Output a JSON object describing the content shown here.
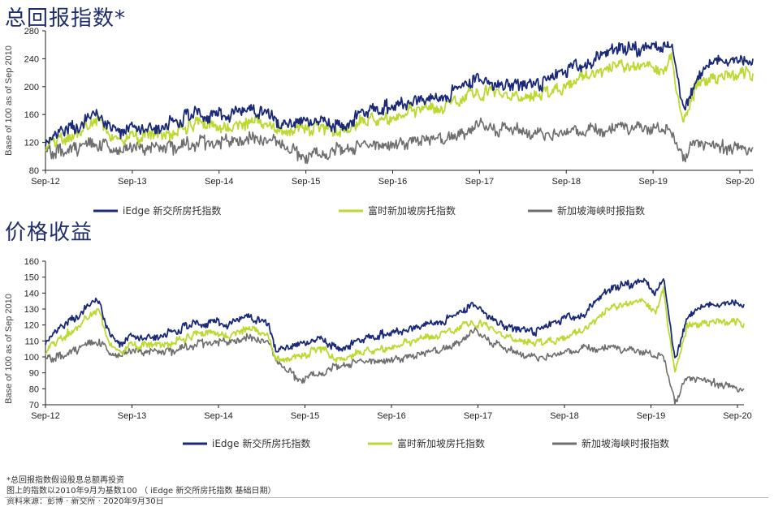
{
  "colors": {
    "blue": "#1a2a78",
    "green": "#bcd932",
    "grey": "#6e6e6e",
    "axis": "#222222"
  },
  "footnotes": {
    "line1": "*总回报指数假设股息总额再投资",
    "line2": "图上的指数以2010年9月为基数100 （ iEdge 新交所房托指数 基础日期）",
    "line3": "资料来源：彭博 · 新交所 · 2020年9月30日"
  },
  "chart_data": [
    {
      "type": "line",
      "title": "总回报指数*",
      "ylabel": "Base of 100 as of Sep 2010",
      "ylim": [
        80,
        280
      ],
      "yticks": [
        80,
        120,
        160,
        200,
        240,
        280
      ],
      "xticks": [
        "Sep-12",
        "Sep-13",
        "Sep-14",
        "Sep-15",
        "Sep-16",
        "Sep-17",
        "Sep-18",
        "Sep-19",
        "Sep-20"
      ],
      "legend": [
        "iEdge 新交所房托指数",
        "富时新加坡房托指数",
        "新加坡海峡时报指数"
      ],
      "legend_position": "bottom",
      "grid": false,
      "x": [
        0,
        0.1,
        0.2,
        0.3,
        0.4,
        0.5,
        0.6,
        0.7,
        0.8,
        0.9,
        1.0,
        1.1,
        1.3,
        1.6,
        1.9,
        2.2,
        2.4,
        2.6,
        2.9,
        3.0,
        3.3,
        3.6,
        3.8,
        4.0,
        4.4,
        4.8,
        5.0,
        5.3,
        5.6,
        6.0,
        6.4,
        6.8,
        7.0,
        7.3,
        7.5,
        7.8,
        7.95,
        8.05,
        8.2,
        8.35,
        8.5,
        8.7,
        9.0,
        9.1
      ],
      "series": [
        {
          "name": "iEdge 新交所房托指数",
          "color_key": "blue",
          "values": [
            124,
            130,
            134,
            140,
            146,
            152,
            157,
            160,
            145,
            137,
            135,
            138,
            140,
            148,
            160,
            159,
            160,
            165,
            160,
            140,
            151,
            152,
            142,
            156,
            170,
            181,
            183,
            193,
            208,
            200,
            205,
            225,
            238,
            250,
            255,
            258,
            250,
            262,
            168,
            205,
            228,
            235,
            237,
            240
          ]
        },
        {
          "name": "富时新加坡房托指数",
          "color_key": "green",
          "values": [
            117,
            121,
            124,
            129,
            134,
            140,
            145,
            148,
            133,
            126,
            124,
            127,
            129,
            136,
            146,
            145,
            146,
            150,
            146,
            135,
            140,
            143,
            135,
            146,
            158,
            168,
            170,
            178,
            193,
            183,
            187,
            205,
            215,
            226,
            230,
            233,
            226,
            242,
            155,
            195,
            212,
            218,
            220,
            219
          ]
        },
        {
          "name": "新加坡海峡时报指数",
          "color_key": "grey",
          "values": [
            104,
            105,
            106,
            108,
            110,
            112,
            115,
            118,
            110,
            108,
            108,
            110,
            111,
            112,
            118,
            122,
            121,
            125,
            124,
            115,
            102,
            104,
            110,
            113,
            118,
            121,
            128,
            131,
            144,
            136,
            134,
            132,
            140,
            141,
            138,
            143,
            138,
            140,
            100,
            118,
            116,
            114,
            113,
            113
          ]
        }
      ]
    },
    {
      "type": "line",
      "title": "价格收益",
      "ylabel": "Base of 100 as of Sep 2010",
      "ylim": [
        70,
        160
      ],
      "yticks": [
        70,
        80,
        90,
        100,
        110,
        120,
        130,
        140,
        150,
        160
      ],
      "xticks": [
        "Sep-12",
        "Sep-13",
        "Sep-14",
        "Sep-15",
        "Sep-16",
        "Sep-17",
        "Sep-18",
        "Sep-19",
        "Sep-20"
      ],
      "legend": [
        "iEdge 新交所房托指数",
        "富时新加坡房托指数",
        "新加坡海峡时报指数"
      ],
      "legend_position": "bottom",
      "grid": false,
      "x": [
        0,
        0.1,
        0.2,
        0.3,
        0.4,
        0.5,
        0.6,
        0.7,
        0.8,
        0.9,
        1.0,
        1.1,
        1.3,
        1.6,
        1.9,
        2.2,
        2.4,
        2.6,
        2.9,
        3.0,
        3.3,
        3.6,
        3.8,
        4.0,
        4.4,
        4.8,
        5.0,
        5.3,
        5.6,
        6.0,
        6.4,
        6.8,
        7.0,
        7.3,
        7.5,
        7.8,
        7.95,
        8.05,
        8.2,
        8.35,
        8.5,
        8.7,
        9.0,
        9.1
      ],
      "series": [
        {
          "name": "iEdge 新交所房托指数",
          "color_key": "blue",
          "values": [
            110,
            115,
            118,
            122,
            126,
            130,
            133,
            136,
            118,
            110,
            108,
            112,
            112,
            115,
            120,
            122,
            120,
            125,
            121,
            103,
            108,
            112,
            105,
            108,
            114,
            118,
            121,
            124,
            132,
            118,
            116,
            124,
            127,
            140,
            145,
            148,
            138,
            150,
            98,
            124,
            130,
            132,
            134,
            133
          ]
        },
        {
          "name": "富时新加坡房托指数",
          "color_key": "green",
          "values": [
            104,
            108,
            111,
            115,
            118,
            123,
            126,
            128,
            112,
            105,
            103,
            107,
            107,
            109,
            113,
            116,
            114,
            118,
            114,
            98,
            100,
            106,
            98,
            101,
            106,
            110,
            113,
            116,
            122,
            112,
            108,
            112,
            116,
            128,
            133,
            136,
            129,
            142,
            92,
            118,
            121,
            123,
            122,
            121
          ]
        },
        {
          "name": "新加坡海峡时报指数",
          "color_key": "grey",
          "values": [
            98,
            99,
            100,
            102,
            104,
            106,
            108,
            110,
            103,
            101,
            101,
            103,
            103,
            103,
            107,
            110,
            109,
            112,
            110,
            97,
            86,
            90,
            94,
            96,
            98,
            100,
            104,
            107,
            116,
            104,
            100,
            102,
            106,
            106,
            104,
            104,
            100,
            102,
            72,
            86,
            86,
            84,
            81,
            80
          ]
        }
      ]
    }
  ]
}
